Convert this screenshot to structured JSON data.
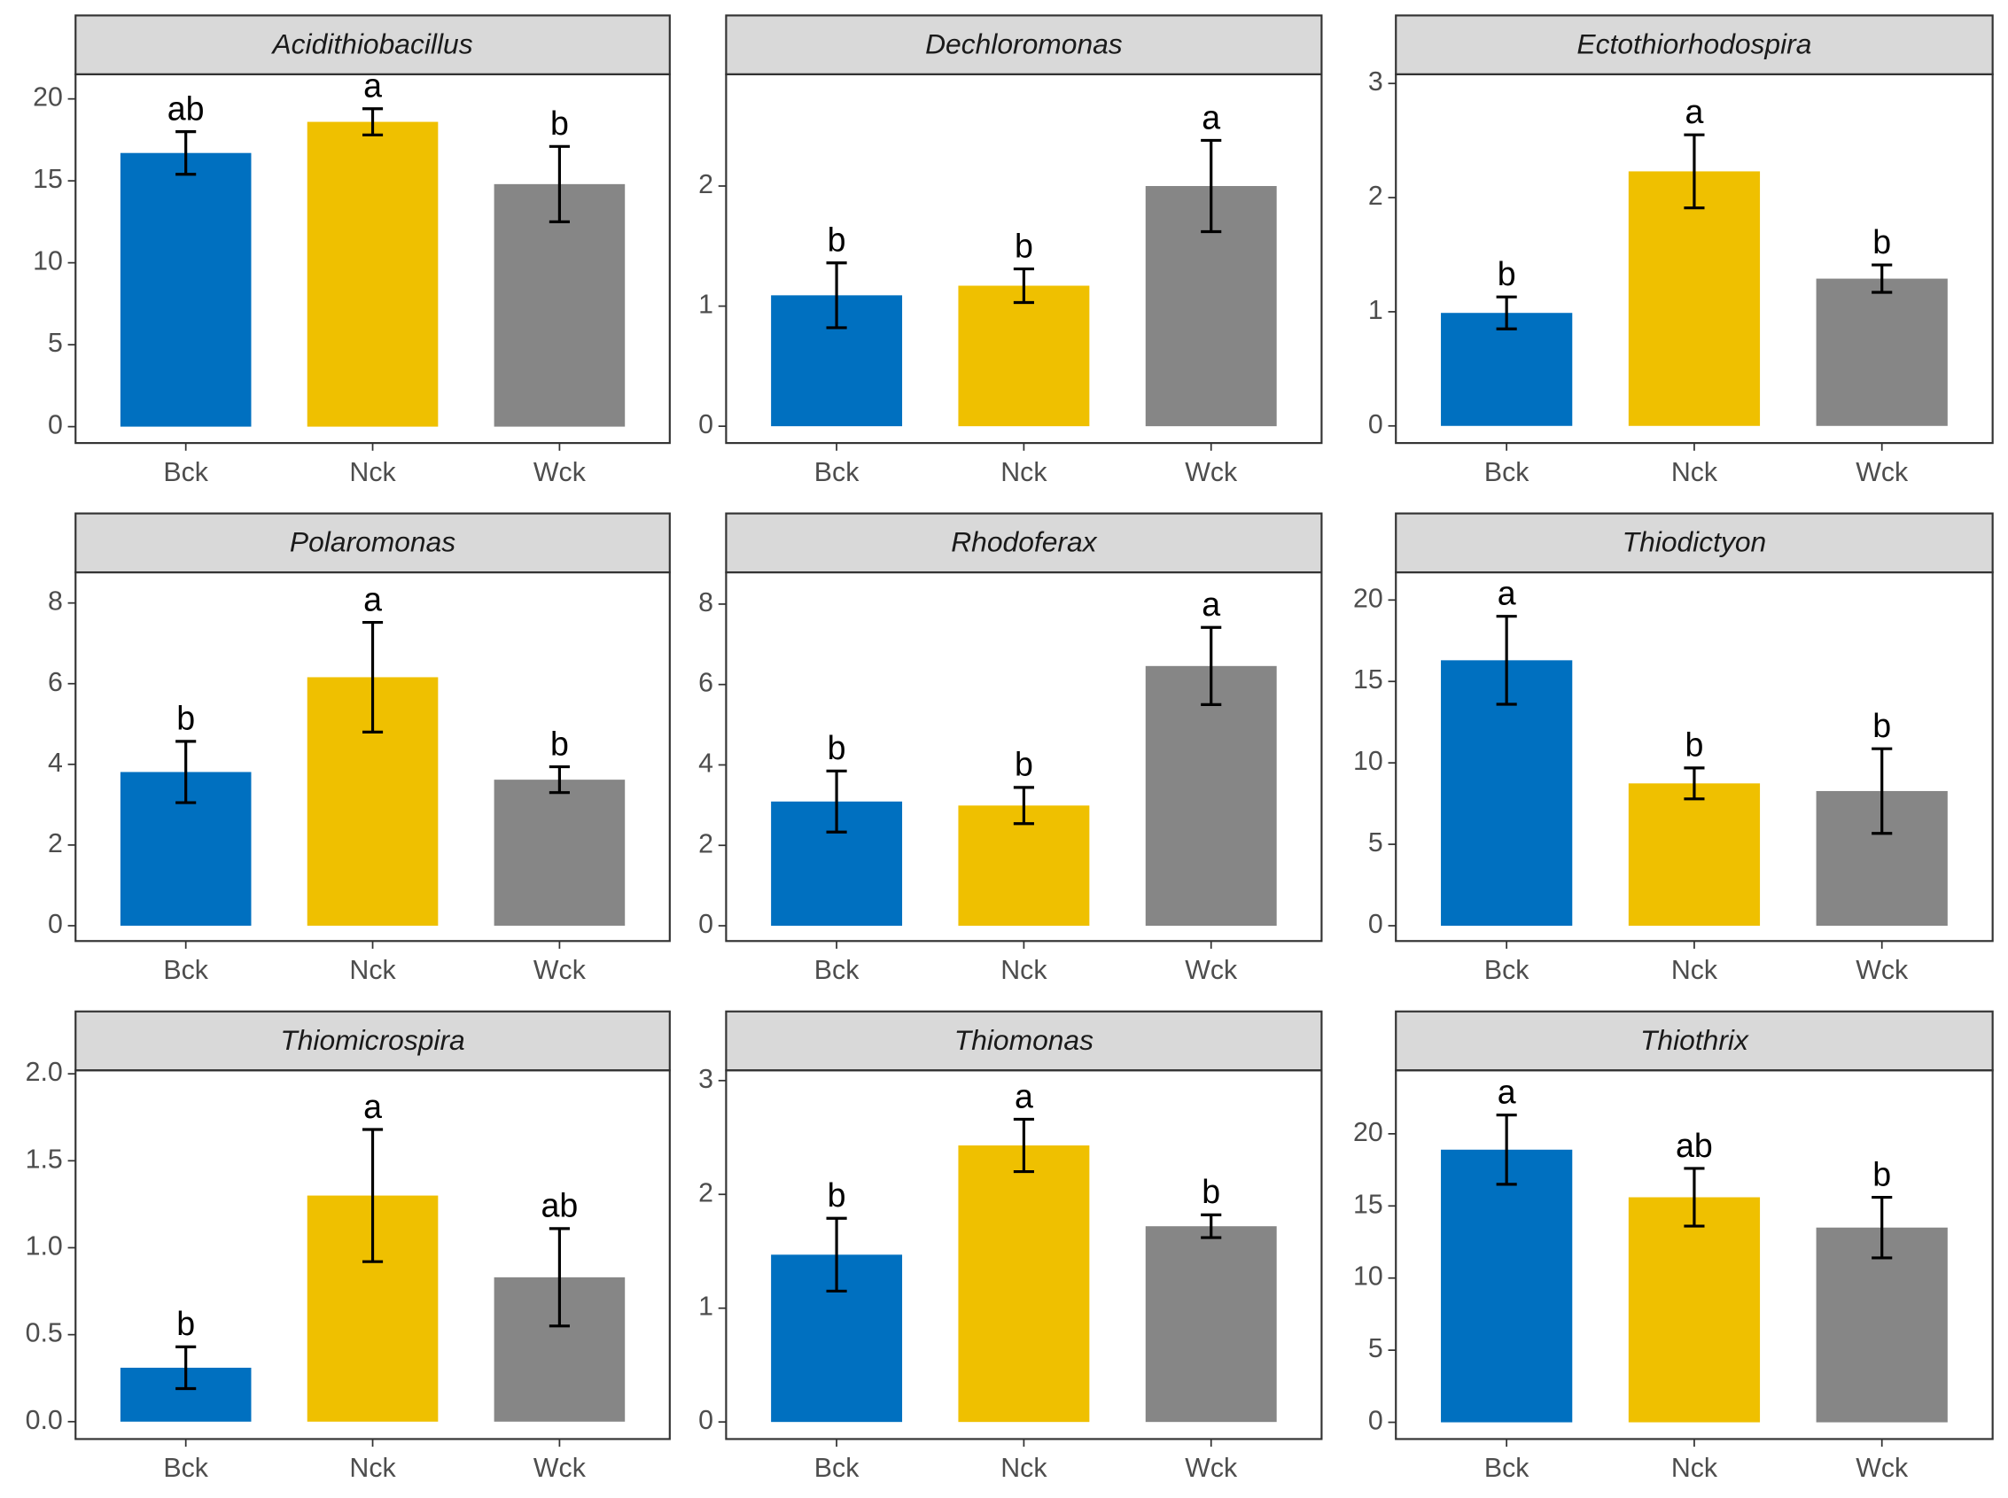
{
  "chart_data": [
    {
      "type": "bar",
      "title": "Acidithiobacillus",
      "categories": [
        "Bck",
        "Nck",
        "Wck"
      ],
      "values": [
        16.7,
        18.6,
        14.8
      ],
      "errors": [
        1.3,
        0.8,
        2.3
      ],
      "letters": [
        "ab",
        "a",
        "b"
      ],
      "colors": [
        "#0070c0",
        "#efc000",
        "#868686"
      ],
      "ylim": [
        -1.0,
        21.5
      ],
      "yticks": [
        0,
        5,
        10,
        15,
        20
      ]
    },
    {
      "type": "bar",
      "title": "Dechloromonas",
      "categories": [
        "Bck",
        "Nck",
        "Wck"
      ],
      "values": [
        1.09,
        1.17,
        2.0
      ],
      "errors": [
        0.27,
        0.14,
        0.38
      ],
      "letters": [
        "b",
        "b",
        "a"
      ],
      "colors": [
        "#0070c0",
        "#efc000",
        "#868686"
      ],
      "ylim": [
        -0.14,
        2.93
      ],
      "yticks": [
        0,
        1,
        2
      ]
    },
    {
      "type": "bar",
      "title": "Ectothiorhodospira",
      "categories": [
        "Bck",
        "Nck",
        "Wck"
      ],
      "values": [
        0.99,
        2.23,
        1.29
      ],
      "errors": [
        0.14,
        0.32,
        0.12
      ],
      "letters": [
        "b",
        "a",
        "b"
      ],
      "colors": [
        "#0070c0",
        "#efc000",
        "#868686"
      ],
      "ylim": [
        -0.15,
        3.08
      ],
      "yticks": [
        0,
        1,
        2,
        3
      ]
    },
    {
      "type": "bar",
      "title": "Polaromonas",
      "categories": [
        "Bck",
        "Nck",
        "Wck"
      ],
      "values": [
        3.81,
        6.16,
        3.62
      ],
      "errors": [
        0.76,
        1.36,
        0.32
      ],
      "letters": [
        "b",
        "a",
        "b"
      ],
      "colors": [
        "#0070c0",
        "#efc000",
        "#868686"
      ],
      "ylim": [
        -0.38,
        8.76
      ],
      "yticks": [
        0,
        2,
        4,
        6,
        8
      ]
    },
    {
      "type": "bar",
      "title": "Rhodoferax",
      "categories": [
        "Bck",
        "Nck",
        "Wck"
      ],
      "values": [
        3.09,
        2.99,
        6.46
      ],
      "errors": [
        0.76,
        0.45,
        0.96
      ],
      "letters": [
        "b",
        "b",
        "a"
      ],
      "colors": [
        "#0070c0",
        "#efc000",
        "#868686"
      ],
      "ylim": [
        -0.38,
        8.79
      ],
      "yticks": [
        0,
        2,
        4,
        6,
        8
      ]
    },
    {
      "type": "bar",
      "title": "Thiodictyon",
      "categories": [
        "Bck",
        "Nck",
        "Wck"
      ],
      "values": [
        16.3,
        8.74,
        8.27
      ],
      "errors": [
        2.7,
        0.95,
        2.6
      ],
      "letters": [
        "a",
        "b",
        "b"
      ],
      "colors": [
        "#0070c0",
        "#efc000",
        "#868686"
      ],
      "ylim": [
        -0.94,
        21.7
      ],
      "yticks": [
        0,
        5,
        10,
        15,
        20
      ]
    },
    {
      "type": "bar",
      "title": "Thiomicrospira",
      "categories": [
        "Bck",
        "Nck",
        "Wck"
      ],
      "values": [
        0.31,
        1.3,
        0.83
      ],
      "errors": [
        0.12,
        0.38,
        0.28
      ],
      "letters": [
        "b",
        "a",
        "ab"
      ],
      "colors": [
        "#0070c0",
        "#efc000",
        "#868686"
      ],
      "ylim": [
        -0.1,
        2.02
      ],
      "yticks": [
        {
          "value": 0,
          "label": "0.0"
        },
        {
          "value": 0.5,
          "label": "0.5"
        },
        {
          "value": 1,
          "label": "1.0"
        },
        {
          "value": 1.5,
          "label": "1.5"
        },
        {
          "value": 2,
          "label": "2.0"
        }
      ]
    },
    {
      "type": "bar",
      "title": "Thiomonas",
      "categories": [
        "Bck",
        "Nck",
        "Wck"
      ],
      "values": [
        1.47,
        2.43,
        1.72
      ],
      "errors": [
        0.32,
        0.23,
        0.1
      ],
      "letters": [
        "b",
        "a",
        "b"
      ],
      "colors": [
        "#0070c0",
        "#efc000",
        "#868686"
      ],
      "ylim": [
        -0.15,
        3.09
      ],
      "yticks": [
        0,
        1,
        2,
        3
      ]
    },
    {
      "type": "bar",
      "title": "Thiothrix",
      "categories": [
        "Bck",
        "Nck",
        "Wck"
      ],
      "values": [
        18.9,
        15.6,
        13.5
      ],
      "errors": [
        2.4,
        2.0,
        2.1
      ],
      "letters": [
        "a",
        "ab",
        "b"
      ],
      "colors": [
        "#0070c0",
        "#efc000",
        "#868686"
      ],
      "ylim": [
        -1.16,
        24.4
      ],
      "yticks": [
        0,
        5,
        10,
        15,
        20
      ]
    }
  ]
}
